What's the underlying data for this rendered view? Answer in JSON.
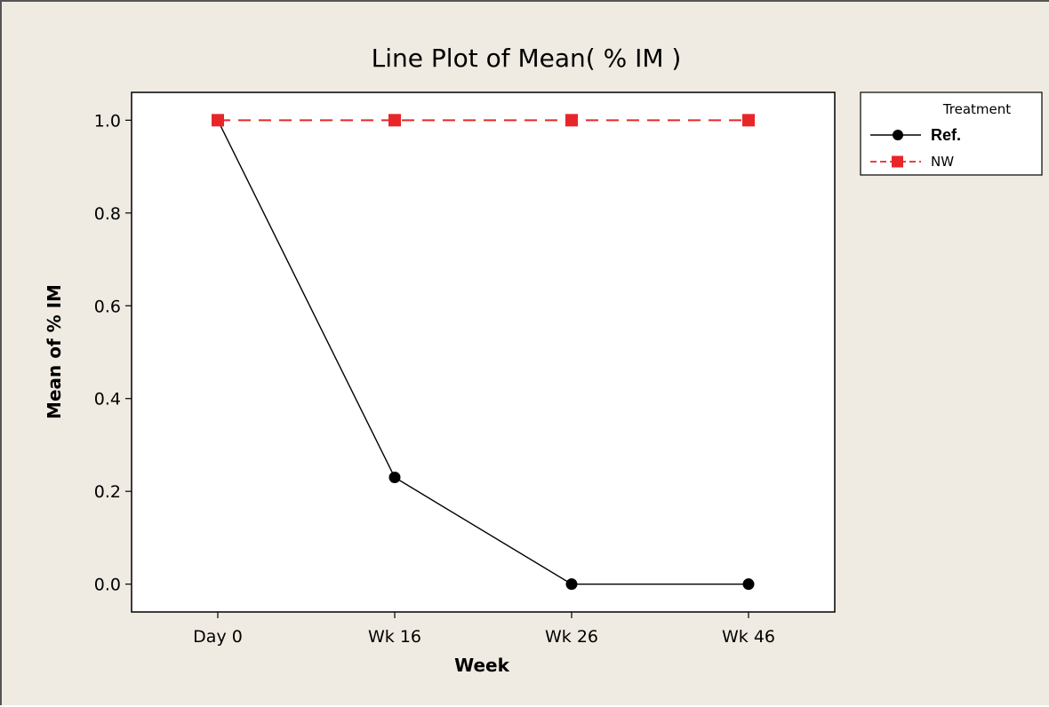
{
  "chart_data": {
    "type": "line",
    "title": "Line Plot of Mean( % IM )",
    "xlabel": "Week",
    "ylabel": "Mean of % IM",
    "categories": [
      "Day 0",
      "Wk 16",
      "Wk 26",
      "Wk 46"
    ],
    "ylim": [
      -0.06,
      1.06
    ],
    "yticks": [
      "0.0",
      "0.2",
      "0.4",
      "0.6",
      "0.8",
      "1.0"
    ],
    "grid": false,
    "legend": {
      "title": "Treatment",
      "placement": "right-top"
    },
    "series": [
      {
        "name": "Ref.",
        "values": [
          1.0,
          0.23,
          0.0,
          0.0
        ],
        "color": "#000000",
        "marker": "circle",
        "line_style": "solid"
      },
      {
        "name": "NW",
        "values": [
          1.0,
          1.0,
          1.0,
          1.0
        ],
        "color": "#e8262a",
        "marker": "square",
        "line_style": "dashed"
      }
    ]
  }
}
